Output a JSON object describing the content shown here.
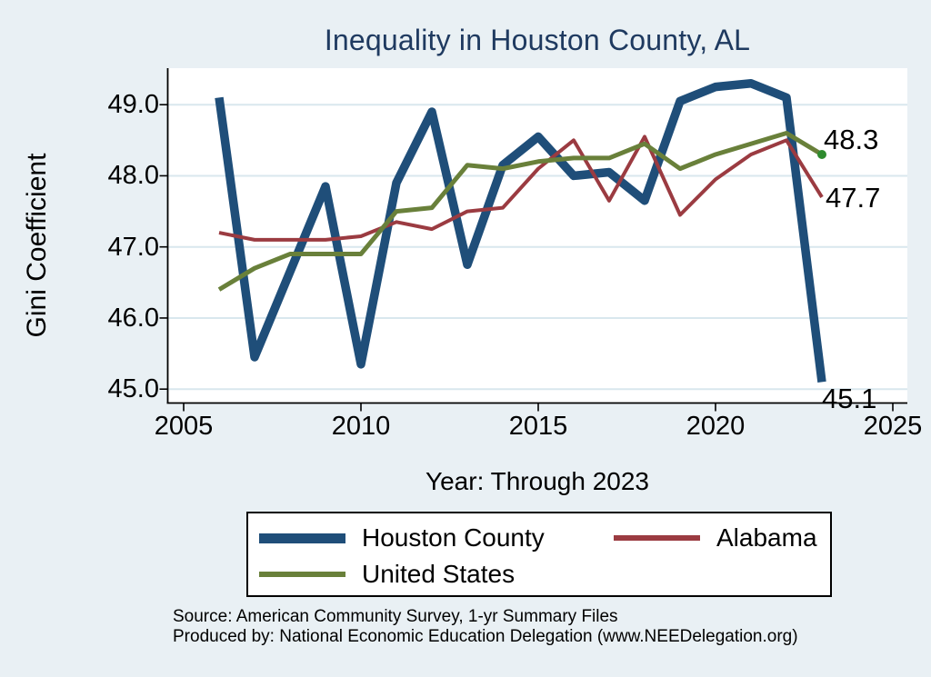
{
  "title": "Inequality in Houston County, AL",
  "colors": {
    "background": "#e9f0f4",
    "plot_background": "#ffffff",
    "title_text": "#1f3a60",
    "gridline": "#d9e7ee",
    "axis": "#000000",
    "houston_county": "#1f4e79",
    "alabama": "#9b3b41",
    "united_states": "#69803a",
    "end_marker": "#2e8b2e"
  },
  "y_axis": {
    "label": "Gini Coefficient",
    "tick_labels": [
      "49.0",
      "48.0",
      "47.0",
      "46.0",
      "45.0"
    ],
    "tick_values": [
      49.0,
      48.0,
      47.0,
      46.0,
      45.0
    ]
  },
  "x_axis": {
    "label": "Year: Through 2023",
    "tick_labels": [
      "2005",
      "2010",
      "2015",
      "2020",
      "2025"
    ],
    "tick_values": [
      2005,
      2010,
      2015,
      2020,
      2025
    ]
  },
  "legend": {
    "position": "bottom",
    "items": [
      {
        "label": "Houston County",
        "color": "#1f4e79",
        "swatch_thickness": 11
      },
      {
        "label": "Alabama",
        "color": "#9b3b41",
        "swatch_thickness": 6
      },
      {
        "label": "United States",
        "color": "#69803a",
        "swatch_thickness": 6
      }
    ]
  },
  "source": {
    "line1": "Source: American Community Survey, 1-yr Summary Files",
    "line2": "Produced by: National Economic Education Delegation (www.NEEDelegation.org)"
  },
  "chart_data": {
    "type": "line",
    "title": "Inequality in Houston County, AL",
    "xlabel": "Year: Through 2023",
    "ylabel": "Gini Coefficient",
    "xlim": [
      2005,
      2025
    ],
    "ylim": [
      44.8,
      49.45
    ],
    "grid": "horizontal",
    "legend_position": "bottom",
    "x": [
      2006,
      2007,
      2008,
      2009,
      2010,
      2011,
      2012,
      2013,
      2014,
      2015,
      2016,
      2017,
      2018,
      2019,
      2020,
      2021,
      2022,
      2023
    ],
    "series": [
      {
        "name": "Houston County",
        "color": "#1f4e79",
        "stroke_width": 9.5,
        "values": [
          49.1,
          45.45,
          46.65,
          47.85,
          45.35,
          47.9,
          48.9,
          46.75,
          48.15,
          48.55,
          48.0,
          48.05,
          47.65,
          49.05,
          49.25,
          49.3,
          49.1,
          45.1
        ]
      },
      {
        "name": "Alabama",
        "color": "#9b3b41",
        "stroke_width": 4,
        "values": [
          47.2,
          47.1,
          47.1,
          47.1,
          47.15,
          47.35,
          47.25,
          47.5,
          47.55,
          48.1,
          48.5,
          47.65,
          48.55,
          47.45,
          47.95,
          48.3,
          48.5,
          47.7
        ]
      },
      {
        "name": "United States",
        "color": "#69803a",
        "stroke_width": 5,
        "end_marker": true,
        "end_marker_color": "#2e8b2e",
        "values": [
          46.4,
          46.7,
          46.9,
          46.9,
          46.9,
          47.5,
          47.55,
          48.15,
          48.1,
          48.2,
          48.25,
          48.25,
          48.45,
          48.1,
          48.3,
          48.45,
          48.6,
          48.3
        ]
      }
    ],
    "end_labels": {
      "united_states": "48.3",
      "alabama": "47.7",
      "houston_county": "45.1"
    }
  }
}
